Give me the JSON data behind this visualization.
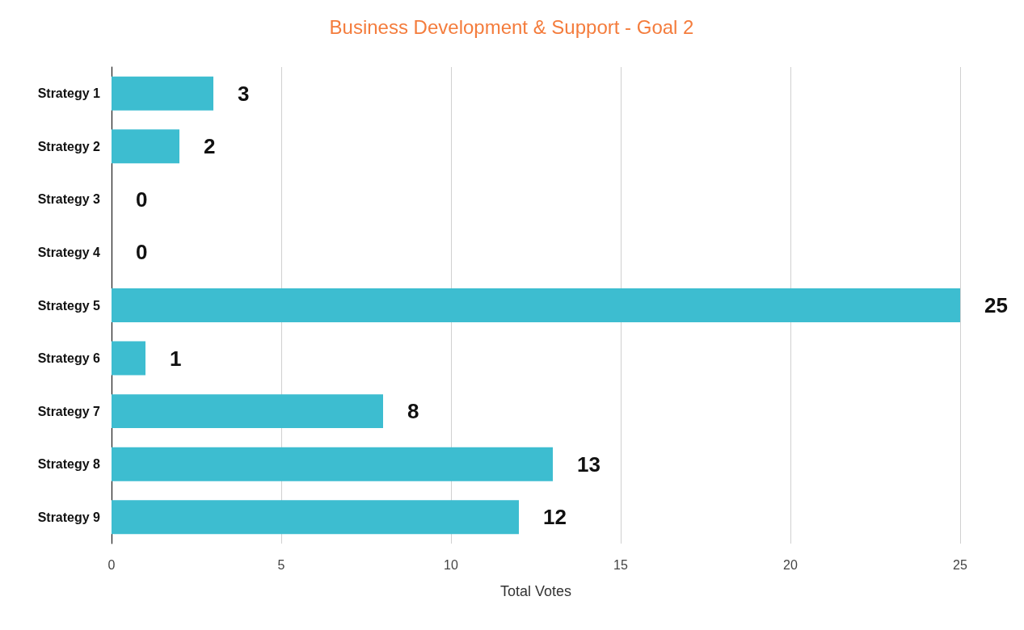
{
  "chart_data": {
    "type": "bar",
    "orientation": "horizontal",
    "title": "Business Development & Support - Goal 2",
    "xlabel": "Total Votes",
    "categories": [
      "Strategy 1",
      "Strategy 2",
      "Strategy 3",
      "Strategy 4",
      "Strategy 5",
      "Strategy 6",
      "Strategy 7",
      "Strategy 8",
      "Strategy 9"
    ],
    "values": [
      3,
      2,
      0,
      0,
      25,
      1,
      8,
      13,
      12
    ],
    "color": "#3dbdd0",
    "xlim": [
      0,
      25
    ],
    "xticks": [
      0,
      5,
      10,
      15,
      20,
      25
    ],
    "grid": "x",
    "data_labels": true
  }
}
